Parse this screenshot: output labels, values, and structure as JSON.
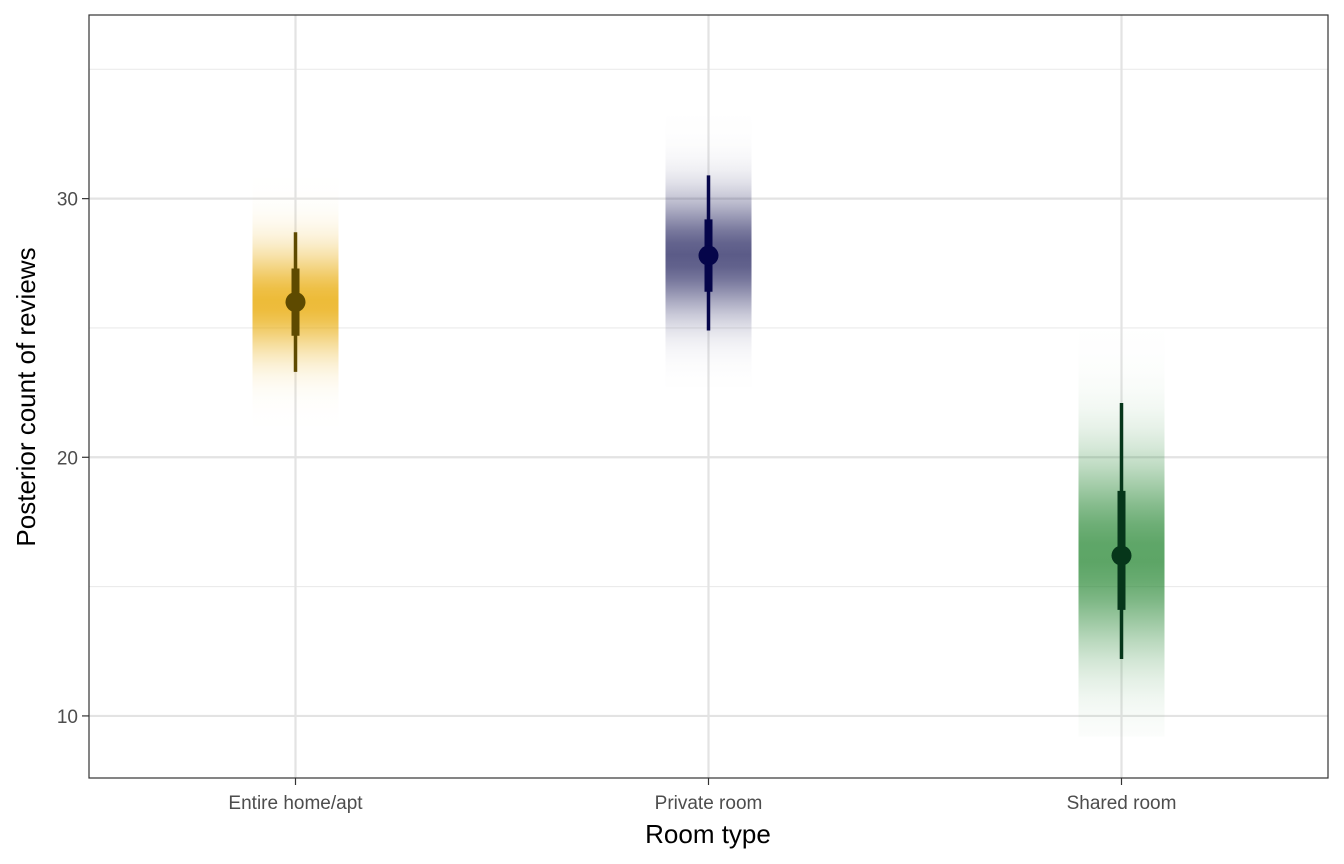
{
  "chart_data": {
    "type": "gradient-interval",
    "title": "",
    "xlabel": "Room type",
    "ylabel": "Posterior count of reviews",
    "categories": [
      "Entire home/apt",
      "Private room",
      "Shared room"
    ],
    "ylim": [
      7.6,
      37.1
    ],
    "yticks": [
      10,
      20,
      30
    ],
    "grid": true,
    "legend": "none",
    "series": [
      {
        "category": "Entire home/apt",
        "point": 26.0,
        "interval_66": [
          24.7,
          27.3
        ],
        "interval_95": [
          23.3,
          28.7
        ],
        "gradient_range": [
          21.0,
          31.2
        ],
        "color": "#e8a800",
        "point_color": "#5e4a00"
      },
      {
        "category": "Private room",
        "point": 27.8,
        "interval_66": [
          26.4,
          29.2
        ],
        "interval_95": [
          24.9,
          30.9
        ],
        "gradient_range": [
          22.7,
          33.9
        ],
        "color": "#2d2d66",
        "point_color": "#05054a"
      },
      {
        "category": "Shared room",
        "point": 16.2,
        "interval_66": [
          14.1,
          18.7
        ],
        "interval_95": [
          12.2,
          22.1
        ],
        "gradient_range": [
          9.2,
          27.1
        ],
        "color": "#2e8b3a",
        "point_color": "#06361a"
      }
    ]
  }
}
